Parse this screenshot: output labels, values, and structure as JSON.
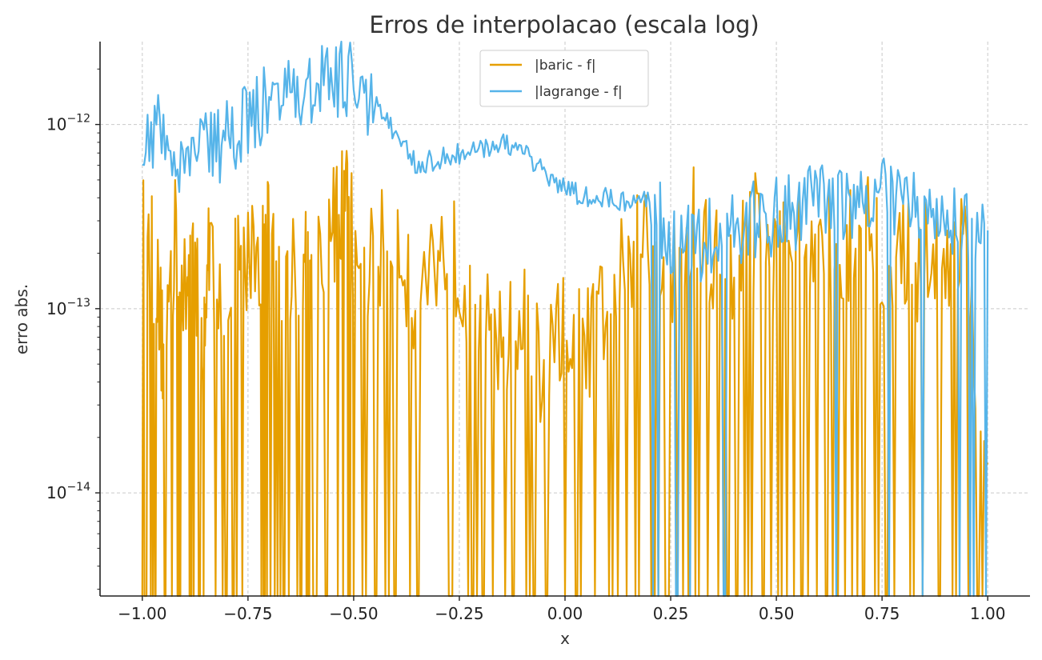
{
  "chart_data": {
    "type": "line",
    "title": "Erros de interpolacao (escala log)",
    "xlabel": "x",
    "ylabel": "erro abs.",
    "xlim": [
      -1.1,
      1.1
    ],
    "ylim_log10": [
      -14.56,
      -11.55
    ],
    "yscale": "log",
    "grid": true,
    "legend_placement": "top-center",
    "x_ticks": [
      -1.0,
      -0.75,
      -0.5,
      -0.25,
      0.0,
      0.25,
      0.5,
      0.75,
      1.0
    ],
    "x_tick_labels": [
      "−1.00",
      "−0.75",
      "−0.50",
      "−0.25",
      "0.00",
      "0.25",
      "0.50",
      "0.75",
      "1.00"
    ],
    "y_ticks": [
      -14,
      -13,
      -12
    ],
    "y_tick_labels": [
      {
        "base": "10",
        "exp": "−14"
      },
      {
        "base": "10",
        "exp": "−13"
      },
      {
        "base": "10",
        "exp": "−12"
      }
    ],
    "series": [
      {
        "name": "|baric - f|",
        "color": "#E69F00",
        "x": [
          -1.0,
          -0.97,
          -0.95,
          -0.92,
          -0.9,
          -0.88,
          -0.86,
          -0.84,
          -0.8,
          -0.76,
          -0.72,
          -0.7,
          -0.66,
          -0.62,
          -0.6,
          -0.55,
          -0.52,
          -0.5,
          -0.45,
          -0.4,
          -0.35,
          -0.3,
          -0.25,
          -0.2,
          -0.15,
          -0.1,
          -0.05,
          0.0,
          0.05,
          0.1,
          0.15,
          0.2,
          0.25,
          0.3,
          0.35,
          0.4,
          0.45,
          0.5,
          0.55,
          0.6,
          0.65,
          0.7,
          0.75,
          0.8,
          0.85,
          0.9,
          0.95,
          1.0
        ],
        "y": [
          2.5e-13,
          1.7e-13,
          5.6e-14,
          2.8e-13,
          1.1e-13,
          2.2e-13,
          5.6e-14,
          2.2e-13,
          1.1e-13,
          2.2e-13,
          1.7e-13,
          2.8e-13,
          1.1e-13,
          2.2e-13,
          1.7e-13,
          2.8e-13,
          3.9e-13,
          2.2e-13,
          1.7e-13,
          2.8e-13,
          1.1e-13,
          2.2e-13,
          1.7e-13,
          1.1e-13,
          5.6e-14,
          8.3e-14,
          4.2e-14,
          8.3e-14,
          5.6e-14,
          1.1e-13,
          1.7e-13,
          2.2e-13,
          1.7e-13,
          2.8e-13,
          2.2e-13,
          1.7e-13,
          2.8e-13,
          1.7e-13,
          2.2e-13,
          1.7e-13,
          2.2e-13,
          2.8e-13,
          1.7e-13,
          2.2e-13,
          1.7e-13,
          2.2e-13,
          2.2e-13,
          1e-14
        ]
      },
      {
        "name": "|lagrange - f|",
        "color": "#56B4E9",
        "x": [
          -1.0,
          -0.95,
          -0.9,
          -0.85,
          -0.8,
          -0.75,
          -0.7,
          -0.65,
          -0.6,
          -0.55,
          -0.5,
          -0.45,
          -0.4,
          -0.35,
          -0.3,
          -0.25,
          -0.2,
          -0.15,
          -0.1,
          -0.05,
          0.0,
          0.05,
          0.1,
          0.15,
          0.2,
          0.25,
          0.3,
          0.35,
          0.4,
          0.45,
          0.5,
          0.55,
          0.6,
          0.65,
          0.7,
          0.75,
          0.8,
          0.85,
          0.9,
          0.95,
          1.0
        ],
        "y": [
          8e-13,
          9e-13,
          6e-13,
          7e-13,
          8e-13,
          1.1e-12,
          1.3e-12,
          1.4e-12,
          1.6e-12,
          1.7e-12,
          1.7e-12,
          1.3e-12,
          9e-13,
          6e-13,
          6.5e-13,
          7e-13,
          7.5e-13,
          8e-13,
          7e-13,
          5.5e-13,
          4.5e-13,
          4e-13,
          4e-13,
          3.8e-13,
          4e-13,
          2.5e-13,
          2.2e-13,
          2.5e-13,
          2.8e-13,
          3e-13,
          3.2e-13,
          3.5e-13,
          3.6e-13,
          3.8e-13,
          4e-13,
          4e-13,
          3.6e-13,
          3.5e-13,
          3.3e-13,
          3e-13,
          2e-13
        ]
      }
    ]
  }
}
